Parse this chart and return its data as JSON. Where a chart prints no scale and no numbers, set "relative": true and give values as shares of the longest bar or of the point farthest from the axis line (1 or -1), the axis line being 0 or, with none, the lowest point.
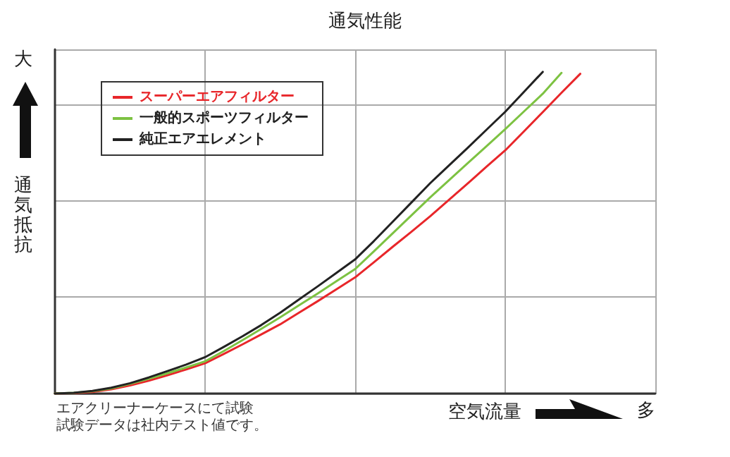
{
  "chart_data": {
    "type": "line",
    "title": "通気性能",
    "xlabel": "空気流量",
    "ylabel": "通気抵抗",
    "relative": true,
    "grid": true,
    "legend": "top left",
    "marker": "none",
    "line_style": "solid",
    "categories": [
      null,
      null,
      null,
      null,
      null,
      null,
      null,
      null,
      null,
      null,
      null,
      null,
      null,
      null,
      null,
      null,
      null,
      null,
      null,
      null,
      null,
      null,
      null,
      null,
      null,
      null,
      null,
      null,
      null,
      null,
      null,
      null,
      null
    ],
    "annotations": [
      "大",
      "多",
      "エアクリーナーケースにて試験",
      "試験データは社内テスト値です。"
    ],
    "series": [
      {
        "name": "スーパーエアフィルター",
        "color": "#e8262a",
        "values": [
          0,
          0.001,
          0.005,
          0.013,
          0.025,
          0.04,
          0.057,
          0.075,
          0.094,
          0.123,
          0.153,
          0.184,
          0.215,
          0.251,
          0.287,
          0.324,
          0.361,
          0.408,
          0.456,
          0.503,
          0.551,
          0.602,
          0.653,
          0.705,
          0.756,
          0.815,
          0.875,
          0.935,
          0.994,
          null,
          null,
          null,
          null
        ]
      },
      {
        "name": "一般的スポーツフィルター",
        "color": "#7dc242",
        "values": [
          0,
          0.002,
          0.007,
          0.016,
          0.03,
          0.046,
          0.063,
          0.081,
          0.1,
          0.132,
          0.166,
          0.201,
          0.237,
          0.274,
          0.311,
          0.349,
          0.387,
          0.442,
          0.498,
          0.554,
          0.61,
          0.663,
          0.716,
          0.769,
          0.822,
          0.877,
          0.932,
          0.997,
          null,
          null,
          null,
          null,
          null
        ]
      },
      {
        "name": "純正エアエレメント",
        "color": "#222222",
        "values": [
          0,
          0.002,
          0.008,
          0.018,
          0.032,
          0.05,
          0.07,
          0.09,
          0.113,
          0.145,
          0.178,
          0.213,
          0.251,
          0.292,
          0.333,
          0.375,
          0.417,
          0.474,
          0.534,
          0.594,
          0.654,
          0.709,
          0.764,
          0.82,
          0.876,
          0.938,
          1,
          null,
          null,
          null,
          null,
          null,
          null
        ]
      }
    ]
  }
}
